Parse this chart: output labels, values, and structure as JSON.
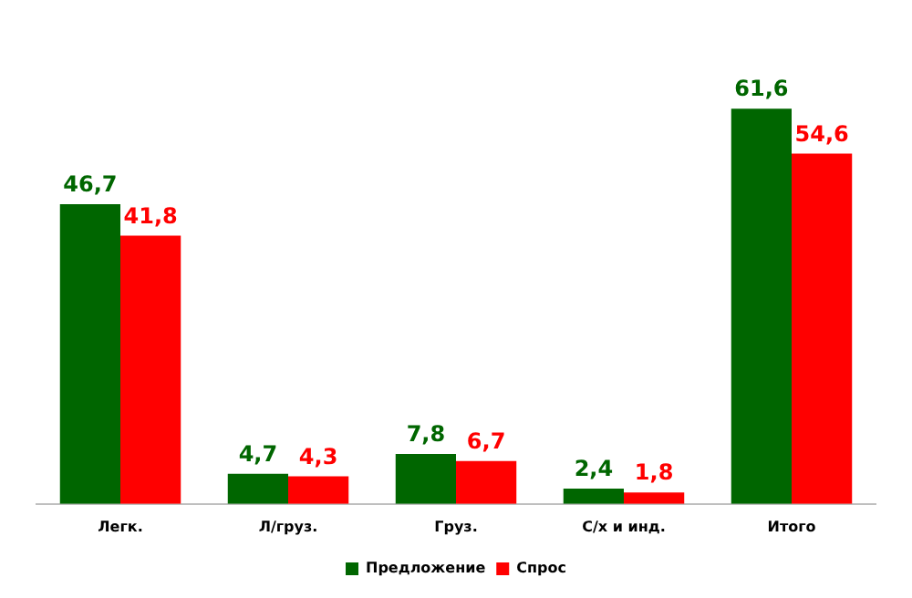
{
  "chart_data": {
    "type": "bar",
    "categories": [
      "Легк.",
      "Л/груз.",
      "Груз.",
      "С/х и инд.",
      "Итого"
    ],
    "series": [
      {
        "name": "Предложение",
        "color": "#006600",
        "values": [
          46.7,
          4.7,
          7.8,
          2.4,
          61.6
        ],
        "value_labels": [
          "46,7",
          "4,7",
          "7,8",
          "2,4",
          "61,6"
        ]
      },
      {
        "name": "Спрос",
        "color": "#ff0000",
        "values": [
          41.8,
          4.3,
          6.7,
          1.8,
          54.6
        ],
        "value_labels": [
          "41,8",
          "4,3",
          "6,7",
          "1,8",
          "54,6"
        ]
      }
    ],
    "legend": "bottom",
    "grid": false
  }
}
